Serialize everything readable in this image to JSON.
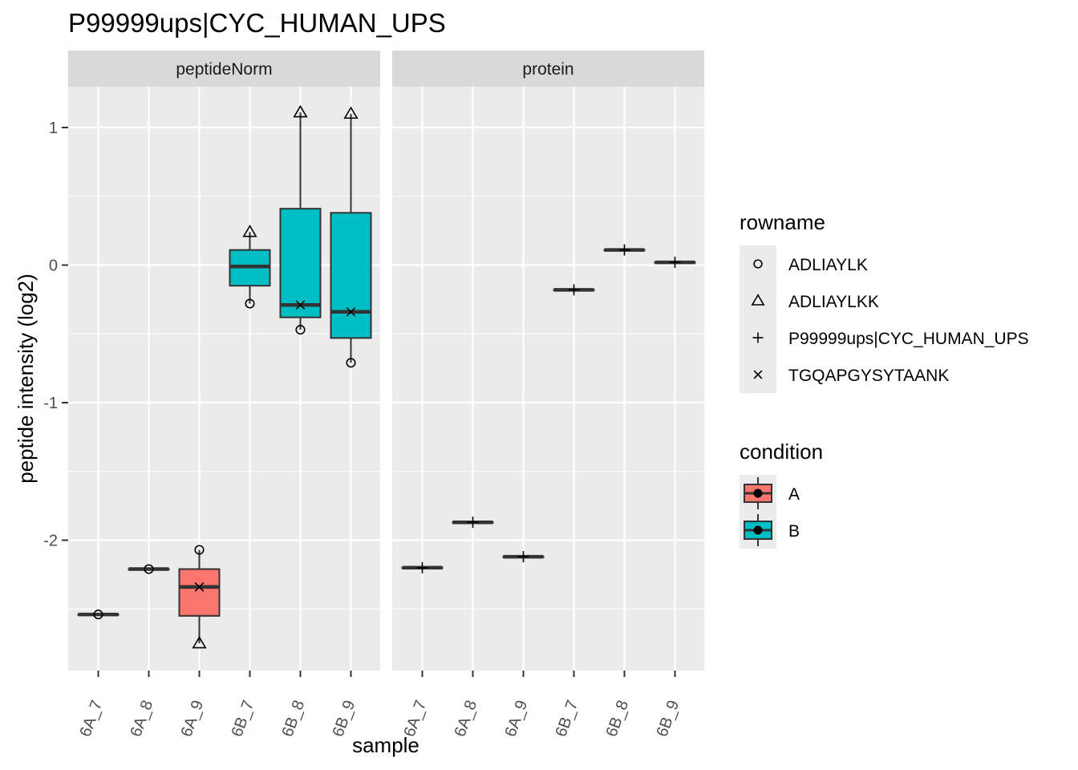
{
  "chart_data": {
    "type": "box",
    "title": "P99999ups|CYC_HUMAN_UPS",
    "xlabel": "sample",
    "ylabel": "peptide intensity (log2)",
    "ylim": [
      -2.96,
      1.3
    ],
    "yticks": [
      1,
      0,
      -1,
      -2
    ],
    "ytick_labels": [
      "1",
      "0",
      "-1",
      "-2"
    ],
    "categories": [
      "6A_7",
      "6A_8",
      "6A_9",
      "6B_7",
      "6B_8",
      "6B_9"
    ],
    "sample_condition": [
      "A",
      "A",
      "A",
      "B",
      "B",
      "B"
    ],
    "grid": true,
    "legend_position": "right",
    "panels": [
      {
        "name": "peptideNorm",
        "boxes": [
          {
            "sample": "6A_7",
            "condition": "A",
            "min": -2.54,
            "q1": -2.54,
            "median": -2.54,
            "q3": -2.54,
            "max": -2.54
          },
          {
            "sample": "6A_8",
            "condition": "A",
            "min": -2.21,
            "q1": -2.21,
            "median": -2.21,
            "q3": -2.21,
            "max": -2.21
          },
          {
            "sample": "6A_9",
            "condition": "A",
            "min": -2.75,
            "q1": -2.55,
            "median": -2.34,
            "q3": -2.21,
            "max": -2.07
          },
          {
            "sample": "6B_7",
            "condition": "B",
            "min": -0.28,
            "q1": -0.15,
            "median": -0.01,
            "q3": 0.11,
            "max": 0.24
          },
          {
            "sample": "6B_8",
            "condition": "B",
            "min": -0.47,
            "q1": -0.38,
            "median": -0.29,
            "q3": 0.41,
            "max": 1.11
          },
          {
            "sample": "6B_9",
            "condition": "B",
            "min": -0.71,
            "q1": -0.53,
            "median": -0.34,
            "q3": 0.38,
            "max": 1.1
          }
        ],
        "points": [
          {
            "sample": "6A_7",
            "rowname": "ADLIAYLK",
            "value": -2.54
          },
          {
            "sample": "6A_8",
            "rowname": "ADLIAYLK",
            "value": -2.21
          },
          {
            "sample": "6A_9",
            "rowname": "ADLIAYLK",
            "value": -2.07
          },
          {
            "sample": "6A_9",
            "rowname": "ADLIAYLKK",
            "value": -2.75
          },
          {
            "sample": "6A_9",
            "rowname": "TGQAPGYSYTAANK",
            "value": -2.34
          },
          {
            "sample": "6B_7",
            "rowname": "ADLIAYLK",
            "value": -0.28
          },
          {
            "sample": "6B_7",
            "rowname": "ADLIAYLKK",
            "value": 0.24
          },
          {
            "sample": "6B_8",
            "rowname": "ADLIAYLK",
            "value": -0.47
          },
          {
            "sample": "6B_8",
            "rowname": "ADLIAYLKK",
            "value": 1.11
          },
          {
            "sample": "6B_8",
            "rowname": "TGQAPGYSYTAANK",
            "value": -0.29
          },
          {
            "sample": "6B_9",
            "rowname": "ADLIAYLK",
            "value": -0.71
          },
          {
            "sample": "6B_9",
            "rowname": "ADLIAYLKK",
            "value": 1.1
          },
          {
            "sample": "6B_9",
            "rowname": "TGQAPGYSYTAANK",
            "value": -0.34
          }
        ]
      },
      {
        "name": "protein",
        "boxes": [
          {
            "sample": "6A_7",
            "condition": "A",
            "min": -2.2,
            "q1": -2.2,
            "median": -2.2,
            "q3": -2.2,
            "max": -2.2
          },
          {
            "sample": "6A_8",
            "condition": "A",
            "min": -1.87,
            "q1": -1.87,
            "median": -1.87,
            "q3": -1.87,
            "max": -1.87
          },
          {
            "sample": "6A_9",
            "condition": "A",
            "min": -2.12,
            "q1": -2.12,
            "median": -2.12,
            "q3": -2.12,
            "max": -2.12
          },
          {
            "sample": "6B_7",
            "condition": "B",
            "min": -0.18,
            "q1": -0.18,
            "median": -0.18,
            "q3": -0.18,
            "max": -0.18
          },
          {
            "sample": "6B_8",
            "condition": "B",
            "min": 0.11,
            "q1": 0.11,
            "median": 0.11,
            "q3": 0.11,
            "max": 0.11
          },
          {
            "sample": "6B_9",
            "condition": "B",
            "min": 0.02,
            "q1": 0.02,
            "median": 0.02,
            "q3": 0.02,
            "max": 0.02
          }
        ],
        "points": [
          {
            "sample": "6A_7",
            "rowname": "P99999ups|CYC_HUMAN_UPS",
            "value": -2.2
          },
          {
            "sample": "6A_8",
            "rowname": "P99999ups|CYC_HUMAN_UPS",
            "value": -1.87
          },
          {
            "sample": "6A_9",
            "rowname": "P99999ups|CYC_HUMAN_UPS",
            "value": -2.12
          },
          {
            "sample": "6B_7",
            "rowname": "P99999ups|CYC_HUMAN_UPS",
            "value": -0.18
          },
          {
            "sample": "6B_8",
            "rowname": "P99999ups|CYC_HUMAN_UPS",
            "value": 0.11
          },
          {
            "sample": "6B_9",
            "rowname": "P99999ups|CYC_HUMAN_UPS",
            "value": 0.02
          }
        ]
      }
    ],
    "legends": {
      "rowname": {
        "title": "rowname",
        "items": [
          {
            "label": "ADLIAYLK",
            "shape": "circle"
          },
          {
            "label": "ADLIAYLKK",
            "shape": "triangle"
          },
          {
            "label": "P99999ups|CYC_HUMAN_UPS",
            "shape": "plus"
          },
          {
            "label": "TGQAPGYSYTAANK",
            "shape": "cross"
          }
        ]
      },
      "condition": {
        "title": "condition",
        "items": [
          {
            "label": "A",
            "color": "#F8766D"
          },
          {
            "label": "B",
            "color": "#00BFC4"
          }
        ]
      }
    },
    "colors": {
      "panel_bg": "#EBEBEB",
      "grid": "#FFFFFF",
      "strip_bg": "#D9D9D9",
      "box_line": "#333333",
      "A": "#F8766D",
      "B": "#00BFC4"
    }
  }
}
